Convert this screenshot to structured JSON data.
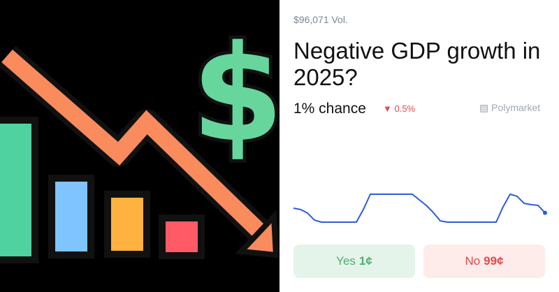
{
  "volume": "$96,071 Vol.",
  "title": "Negative GDP growth in 2025?",
  "chance": "1% chance",
  "change": "0.5%",
  "brand": "Polymarket",
  "buttons": {
    "yes": {
      "label": "Yes",
      "price": "1¢"
    },
    "no": {
      "label": "No",
      "price": "99¢"
    }
  },
  "chart_data": {
    "type": "line",
    "color": "#2f5bd8",
    "values": [
      1.25,
      1.18,
      0.99,
      0.61,
      0.5,
      0.5,
      0.5,
      0.5,
      0.5,
      0.5,
      1.18,
      2.0,
      2.0,
      2.0,
      2.0,
      2.0,
      2.0,
      2.0,
      1.7,
      1.4,
      1.02,
      0.57,
      0.5,
      0.5,
      0.5,
      0.5,
      0.5,
      0.5,
      0.5,
      0.5,
      1.32,
      2.0,
      1.89,
      1.51,
      1.44,
      1.4,
      1.0
    ]
  }
}
